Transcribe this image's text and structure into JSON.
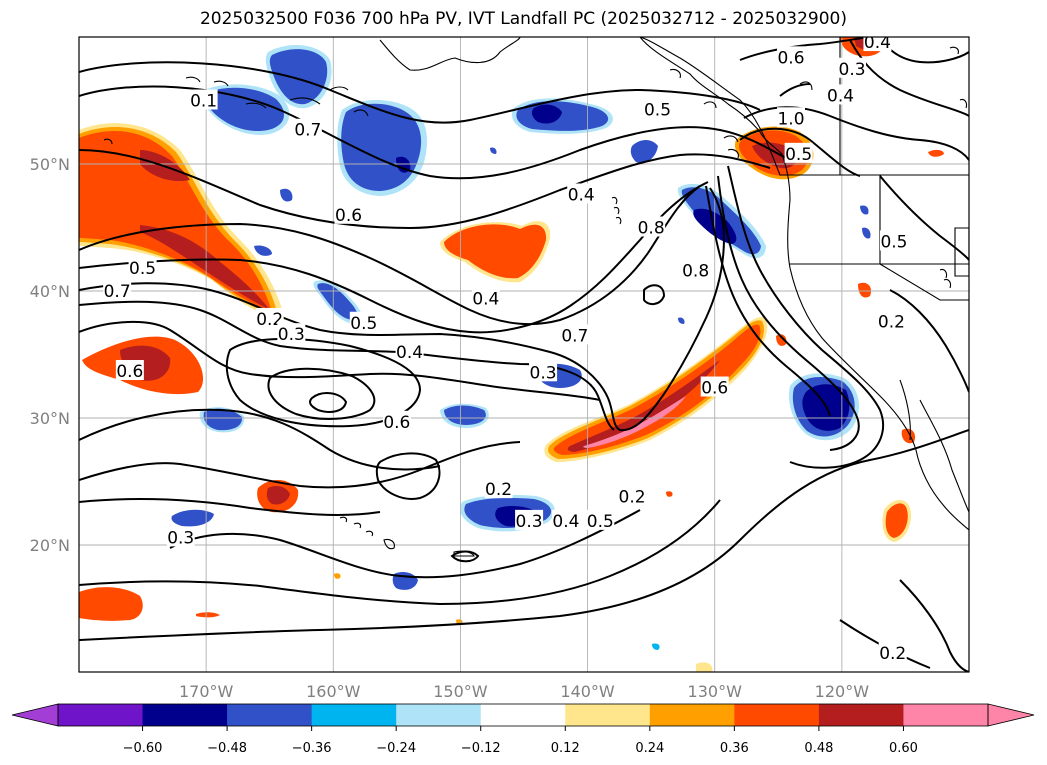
{
  "title": "2025032500 F036 700 hPa PV, IVT Landfall PC (2025032712 - 2025032900)",
  "map": {
    "lon_range": [
      -180,
      -110
    ],
    "lat_range": [
      10,
      60
    ],
    "lon_ticks": [
      {
        "value": -170,
        "label": "170°W"
      },
      {
        "value": -160,
        "label": "160°W"
      },
      {
        "value": -150,
        "label": "150°W"
      },
      {
        "value": -140,
        "label": "140°W"
      },
      {
        "value": -130,
        "label": "130°W"
      },
      {
        "value": -120,
        "label": "120°W"
      }
    ],
    "lat_ticks": [
      {
        "value": 20,
        "label": "20°N"
      },
      {
        "value": 30,
        "label": "30°N"
      },
      {
        "value": 40,
        "label": "40°N"
      },
      {
        "value": 50,
        "label": "50°N"
      }
    ],
    "contour_labels": [
      {
        "lon": -170.2,
        "lat": 55.0,
        "text": "0.1"
      },
      {
        "lon": -162.0,
        "lat": 52.7,
        "text": "0.7"
      },
      {
        "lon": -165.0,
        "lat": 37.8,
        "text": "0.2"
      },
      {
        "lon": -163.3,
        "lat": 36.6,
        "text": "0.3"
      },
      {
        "lon": -175.0,
        "lat": 41.8,
        "text": "0.5"
      },
      {
        "lon": -177.0,
        "lat": 40.0,
        "text": "0.7"
      },
      {
        "lon": -176.0,
        "lat": 33.7,
        "text": "0.6"
      },
      {
        "lon": -158.8,
        "lat": 46.0,
        "text": "0.6"
      },
      {
        "lon": -157.6,
        "lat": 37.5,
        "text": "0.5"
      },
      {
        "lon": -154.0,
        "lat": 35.2,
        "text": "0.4"
      },
      {
        "lon": -155.0,
        "lat": 29.7,
        "text": "0.6"
      },
      {
        "lon": -148.0,
        "lat": 39.4,
        "text": "0.4"
      },
      {
        "lon": -140.5,
        "lat": 47.6,
        "text": "0.4"
      },
      {
        "lon": -141.0,
        "lat": 36.5,
        "text": "0.7"
      },
      {
        "lon": -143.5,
        "lat": 33.6,
        "text": "0.3"
      },
      {
        "lon": -131.5,
        "lat": 41.6,
        "text": "0.8"
      },
      {
        "lon": -135.0,
        "lat": 45.0,
        "text": "0.8"
      },
      {
        "lon": -130.0,
        "lat": 32.4,
        "text": "0.6"
      },
      {
        "lon": -134.5,
        "lat": 54.3,
        "text": "0.5"
      },
      {
        "lon": -124.0,
        "lat": 53.6,
        "text": "1.0"
      },
      {
        "lon": -124.0,
        "lat": 58.4,
        "text": "0.6"
      },
      {
        "lon": -123.4,
        "lat": 50.8,
        "text": "0.5"
      },
      {
        "lon": -119.2,
        "lat": 57.5,
        "text": "0.3"
      },
      {
        "lon": -117.2,
        "lat": 59.6,
        "text": "0.4"
      },
      {
        "lon": -120.1,
        "lat": 55.4,
        "text": "0.4"
      },
      {
        "lon": -115.9,
        "lat": 43.9,
        "text": "0.5"
      },
      {
        "lon": -116.1,
        "lat": 37.6,
        "text": "0.2"
      },
      {
        "lon": -147.0,
        "lat": 24.4,
        "text": "0.2"
      },
      {
        "lon": -136.5,
        "lat": 23.8,
        "text": "0.2"
      },
      {
        "lon": -144.6,
        "lat": 21.9,
        "text": "0.3"
      },
      {
        "lon": -141.7,
        "lat": 21.9,
        "text": "0.4"
      },
      {
        "lon": -139.0,
        "lat": 21.9,
        "text": "0.5"
      },
      {
        "lon": -172.0,
        "lat": 20.6,
        "text": "0.3"
      },
      {
        "lon": -116.0,
        "lat": 11.5,
        "text": "0.2"
      }
    ]
  },
  "colorbar": {
    "ticks": [
      "−0.60",
      "−0.48",
      "−0.36",
      "−0.24",
      "−0.12",
      "0.12",
      "0.24",
      "0.36",
      "0.48",
      "0.60"
    ],
    "colors": [
      "#6f14c8",
      "#00008c",
      "#3151c8",
      "#00b4f0",
      "#aee3f8",
      "#ffffff",
      "#ffe58c",
      "#ffa000",
      "#ff4a00",
      "#b51e1e",
      "#ff85a8"
    ],
    "min_color": "#a23ed6",
    "max_color": "#ff85a8"
  },
  "palette": {
    "pos_1": "#ffe58c",
    "pos_2": "#ffa000",
    "pos_3": "#ff4a00",
    "pos_4": "#b51e1e",
    "pos_5": "#ff85a8",
    "neg_1": "#aee3f8",
    "neg_2": "#00b4f0",
    "neg_3": "#3151c8",
    "neg_4": "#00008c"
  }
}
